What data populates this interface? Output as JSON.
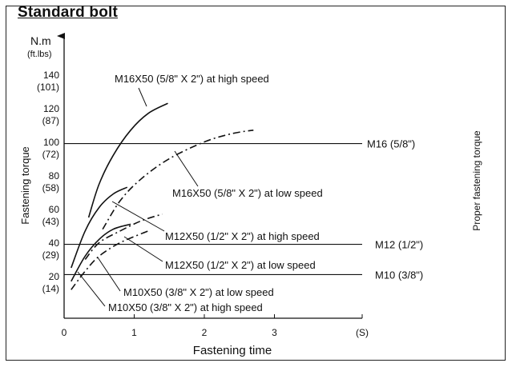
{
  "chart_data": {
    "type": "line",
    "title": "Standard bolt",
    "xlabel": "Fastening time",
    "x_unit": "(S)",
    "ylabel": "Fastening torque",
    "y_unit": "N.m",
    "y_unit_alt": "(ft.lbs)",
    "right_label": "Proper fastening torque",
    "xlim": [
      0,
      3.8
    ],
    "ylim": [
      0,
      155
    ],
    "x_ticks": [
      "0",
      "1",
      "2",
      "3"
    ],
    "y_ticks": [
      {
        "value": 20,
        "nm": "20",
        "ftlbs": "(14)"
      },
      {
        "value": 40,
        "nm": "40",
        "ftlbs": "(29)"
      },
      {
        "value": 60,
        "nm": "60",
        "ftlbs": "(43)"
      },
      {
        "value": 80,
        "nm": "80",
        "ftlbs": "(58)"
      },
      {
        "value": 100,
        "nm": "100",
        "ftlbs": "(72)"
      },
      {
        "value": 120,
        "nm": "120",
        "ftlbs": "(87)"
      },
      {
        "value": 140,
        "nm": "140",
        "ftlbs": "(101)"
      }
    ],
    "reference_lines": [
      {
        "label": "M16 (5/8\")",
        "value": 104
      },
      {
        "label": "M12 (1/2\")",
        "value": 44
      },
      {
        "label": "M10 (3/8\")",
        "value": 26
      }
    ],
    "series": [
      {
        "name": "M16X50 (5/8\" X 2\") at high speed",
        "style": "solid",
        "points": [
          [
            0.35,
            60
          ],
          [
            0.5,
            80
          ],
          [
            0.7,
            97
          ],
          [
            0.95,
            112
          ],
          [
            1.2,
            122
          ],
          [
            1.48,
            128
          ]
        ]
      },
      {
        "name": "M16X50 (5/8\" X 2\") at low speed",
        "style": "dashdot",
        "points": [
          [
            0.55,
            53
          ],
          [
            0.8,
            70
          ],
          [
            1.1,
            83
          ],
          [
            1.5,
            95
          ],
          [
            2.0,
            105
          ],
          [
            2.4,
            110
          ],
          [
            2.7,
            112
          ]
        ]
      },
      {
        "name": "M12X50 (1/2\" X 2\") at high speed",
        "style": "solid",
        "points": [
          [
            0.1,
            30
          ],
          [
            0.3,
            52
          ],
          [
            0.5,
            66
          ],
          [
            0.7,
            74
          ],
          [
            0.9,
            78
          ]
        ]
      },
      {
        "name": "M12X50 (1/2\" X 2\") at low speed",
        "style": "dashdot",
        "points": [
          [
            0.3,
            35
          ],
          [
            0.5,
            45
          ],
          [
            0.8,
            52
          ],
          [
            1.1,
            58
          ],
          [
            1.4,
            62
          ]
        ]
      },
      {
        "name": "M10X50 (3/8\" X 2\") at low speed",
        "style": "dashdot",
        "points": [
          [
            0.1,
            17
          ],
          [
            0.3,
            28
          ],
          [
            0.5,
            37
          ],
          [
            0.8,
            45
          ],
          [
            1.2,
            52
          ]
        ]
      },
      {
        "name": "M10X50 (3/8\" X 2\") at high speed",
        "style": "solid",
        "points": [
          [
            0.1,
            22
          ],
          [
            0.3,
            37
          ],
          [
            0.5,
            47
          ],
          [
            0.7,
            53
          ],
          [
            0.95,
            56
          ]
        ]
      }
    ]
  }
}
